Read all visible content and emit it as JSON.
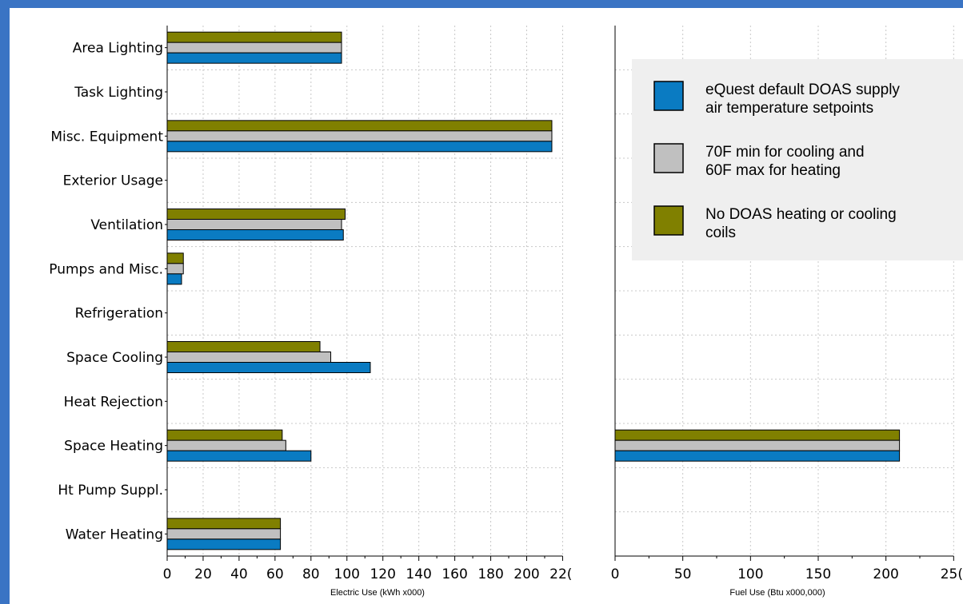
{
  "chart_data": [
    {
      "type": "bar",
      "orientation": "horizontal",
      "categories": [
        "Area Lighting",
        "Task Lighting",
        "Misc. Equipment",
        "Exterior Usage",
        "Ventilation",
        "Pumps and Misc.",
        "Refrigeration",
        "Space Cooling",
        "Heat Rejection",
        "Space Heating",
        "Ht Pump Suppl.",
        "Water Heating"
      ],
      "xlabel": "Electric Use (kWh x000)",
      "xlim": [
        0,
        220
      ],
      "ticks": [
        "0",
        "20",
        "40",
        "60",
        "80",
        "100",
        "120",
        "140",
        "160",
        "180",
        "200",
        "22("
      ],
      "series": [
        {
          "name": "eQuest default DOAS supply air temperature setpoints",
          "color": "#0a7bc2",
          "values": [
            97,
            0,
            214,
            0,
            98,
            8,
            0,
            113,
            0,
            80,
            0,
            63
          ]
        },
        {
          "name": "70F min for cooling and 60F max for heating",
          "color": "#c0c0c0",
          "values": [
            97,
            0,
            214,
            0,
            97,
            9,
            0,
            91,
            0,
            66,
            0,
            63
          ]
        },
        {
          "name": "No DOAS heating or cooling coils",
          "color": "#808000",
          "values": [
            97,
            0,
            214,
            0,
            99,
            9,
            0,
            85,
            0,
            64,
            0,
            63
          ]
        }
      ],
      "grid": true
    },
    {
      "type": "bar",
      "orientation": "horizontal",
      "categories": [
        "Area Lighting",
        "Task Lighting",
        "Misc. Equipment",
        "Exterior Usage",
        "Ventilation",
        "Pumps and Misc.",
        "Refrigeration",
        "Space Cooling",
        "Heat Rejection",
        "Space Heating",
        "Ht Pump Suppl.",
        "Water Heating"
      ],
      "xlabel": "Fuel Use (Btu x000,000)",
      "xlim": [
        0,
        250
      ],
      "ticks": [
        "0",
        "50",
        "100",
        "150",
        "200",
        "25("
      ],
      "series": [
        {
          "name": "eQuest default DOAS supply air temperature setpoints",
          "color": "#0a7bc2",
          "values": [
            0,
            0,
            0,
            0,
            0,
            0,
            0,
            0,
            0,
            210,
            0,
            0
          ]
        },
        {
          "name": "70F min for cooling and 60F max for heating",
          "color": "#c0c0c0",
          "values": [
            0,
            0,
            0,
            0,
            0,
            0,
            0,
            0,
            0,
            210,
            0,
            0
          ]
        },
        {
          "name": "No DOAS heating or cooling coils",
          "color": "#808000",
          "values": [
            0,
            0,
            0,
            0,
            0,
            0,
            0,
            0,
            0,
            210,
            0,
            0
          ]
        }
      ],
      "grid": true
    }
  ],
  "legend": {
    "placement": "top-right",
    "entries": [
      {
        "color": "#0a7bc2",
        "lines": [
          "eQuest default DOAS supply",
          "air temperature setpoints"
        ]
      },
      {
        "color": "#c0c0c0",
        "lines": [
          "70F min for cooling and",
          "60F max for heating"
        ]
      },
      {
        "color": "#808000",
        "lines": [
          "No DOAS heating or cooling",
          "coils"
        ]
      }
    ]
  }
}
